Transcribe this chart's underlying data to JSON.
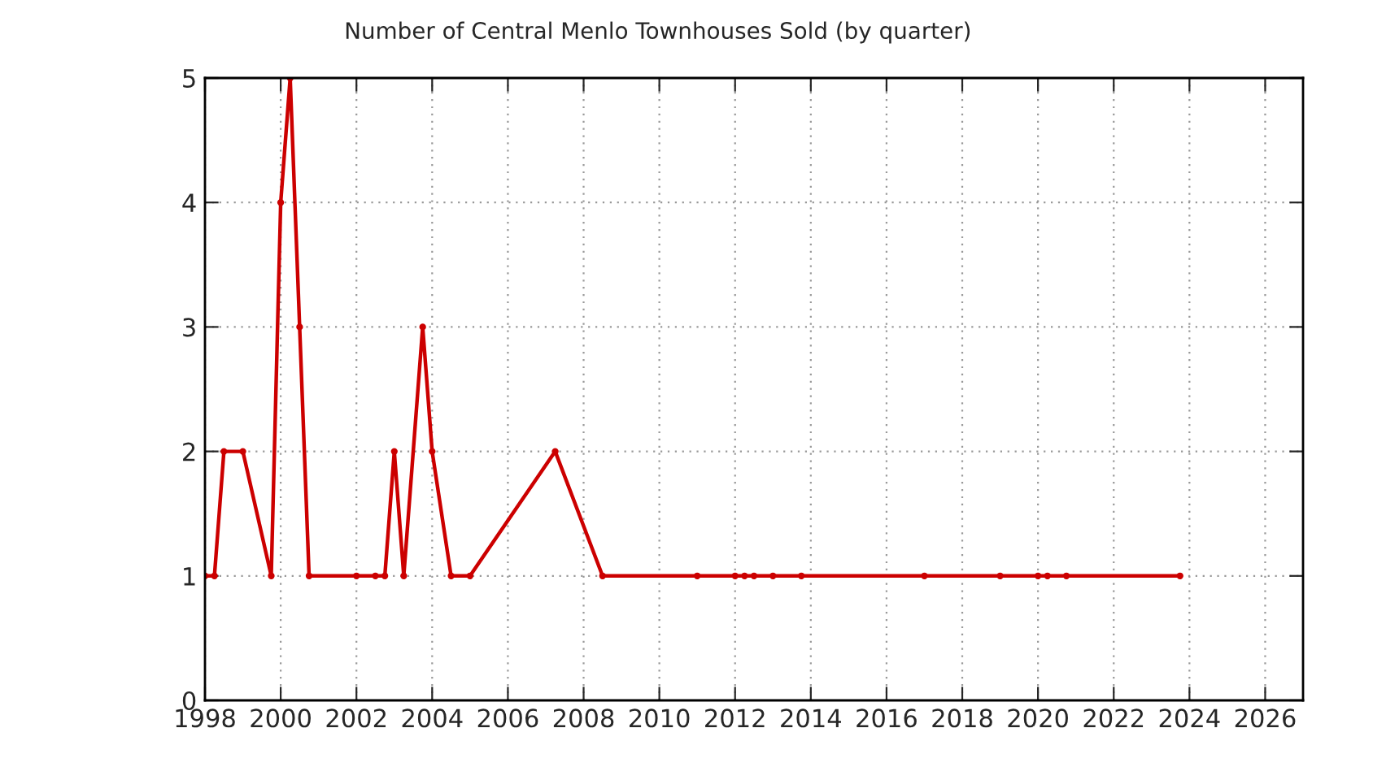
{
  "chart_data": {
    "type": "line",
    "title": "Number of Central Menlo Townhouses Sold (by quarter)",
    "x": [
      1998.0,
      1998.25,
      1998.5,
      1999.0,
      1999.75,
      2000.0,
      2000.25,
      2000.5,
      2000.75,
      2002.0,
      2002.5,
      2002.75,
      2003.0,
      2003.25,
      2003.75,
      2004.0,
      2004.5,
      2005.0,
      2007.25,
      2008.5,
      2011.0,
      2012.0,
      2012.25,
      2012.5,
      2013.0,
      2013.75,
      2017.0,
      2019.0,
      2020.0,
      2020.25,
      2020.75,
      2023.75
    ],
    "series": [
      {
        "color": "#cc0000",
        "values": [
          1,
          1,
          2,
          2,
          1,
          4,
          5,
          3,
          1,
          1,
          1,
          1,
          2,
          1,
          3,
          2,
          1,
          1,
          2,
          1,
          1,
          1,
          1,
          1,
          1,
          1,
          1,
          1,
          1,
          1,
          1,
          1
        ]
      }
    ],
    "xlim": [
      1998,
      2027
    ],
    "xticks": [
      1998,
      2000,
      2002,
      2004,
      2006,
      2008,
      2010,
      2012,
      2014,
      2016,
      2018,
      2020,
      2022,
      2024,
      2026
    ],
    "ylim": [
      0,
      5
    ],
    "yticks": [
      0,
      1,
      2,
      3,
      4,
      5
    ],
    "grid": true,
    "marker": "circle",
    "line_style": "solid"
  }
}
